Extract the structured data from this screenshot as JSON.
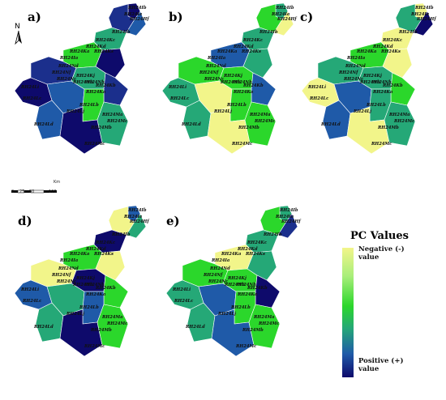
{
  "panels": [
    {
      "id": "a",
      "label": "a)",
      "colors": [
        "#0e0a6b",
        "#1b2f8c",
        "#1f5aa8",
        "#25a877",
        "#2bd72b",
        "#1b2f8c",
        "#0e0a6b",
        "#1f5aa8",
        "#25a877",
        "#0e0a6b",
        "#1b2f8c",
        "#2bd72b",
        "#1f5aa8",
        "#0e0a6b",
        "#25a877"
      ]
    },
    {
      "id": "b",
      "label": "b)",
      "colors": [
        "#25a877",
        "#2bd72b",
        "#f2f58a",
        "#25a877",
        "#1f5aa8",
        "#2bd72b",
        "#25a877",
        "#f2f58a",
        "#2bd72b",
        "#25a877",
        "#1f5aa8",
        "#2bd72b",
        "#25a877",
        "#f2f58a",
        "#2bd72b"
      ]
    },
    {
      "id": "c",
      "label": "c)",
      "colors": [
        "#f2f58a",
        "#25a877",
        "#0e0a6b",
        "#f2f58a",
        "#2bd72b",
        "#25a877",
        "#f2f58a",
        "#1f5aa8",
        "#25a877",
        "#f2f58a",
        "#2bd72b",
        "#25a877",
        "#1f5aa8",
        "#f2f58a",
        "#25a877"
      ]
    },
    {
      "id": "d",
      "label": "d)",
      "colors": [
        "#1f5aa8",
        "#f2f58a",
        "#25a877",
        "#0e0a6b",
        "#2bd72b",
        "#f2f58a",
        "#1f5aa8",
        "#25a877",
        "#0e0a6b",
        "#f2f58a",
        "#2bd72b",
        "#1f5aa8",
        "#25a877",
        "#0e0a6b",
        "#2bd72b"
      ]
    },
    {
      "id": "e",
      "label": "e)",
      "colors": [
        "#25a877",
        "#2bd72b",
        "#1b2f8c",
        "#25a877",
        "#f2f58a",
        "#2bd72b",
        "#25a877",
        "#1f5aa8",
        "#2bd72b",
        "#25a877",
        "#0e0a6b",
        "#2bd72b",
        "#25a877",
        "#1f5aa8",
        "#2bd72b"
      ]
    }
  ],
  "subbasin_labels": [
    "RH24Ib",
    "RH24Ia",
    "RH24Hf",
    "RH24Ib",
    "RH24Kc",
    "RH24Kd",
    "RH24Ka",
    "RH24Ks",
    "RH24Ia",
    "RH24Nd",
    "RH24Nf",
    "RH24Kj",
    "RH24Nc",
    "RH24Nb",
    "RH24Nh",
    "RH24Kb",
    "RH24Li",
    "RH24Ka",
    "RH24Lc",
    "RH24Lb",
    "RH24Lj",
    "RH24Ma",
    "RH24Mc",
    "RH24Mb",
    "RH24Mc",
    "RH24Ld"
  ],
  "legend": {
    "title": "PC Values",
    "negative": "Negative (-)",
    "negative_value": "value",
    "positive": "Positive (+)",
    "positive_value": "value",
    "gradient": [
      "#f2f58a",
      "#2bd72b",
      "#25a877",
      "#1f5aa8",
      "#0e0a6b"
    ]
  },
  "compass": {
    "north": "N"
  },
  "scalebar": {
    "ticks": [
      "0",
      "25",
      "50",
      "100"
    ],
    "unit": "Km"
  }
}
